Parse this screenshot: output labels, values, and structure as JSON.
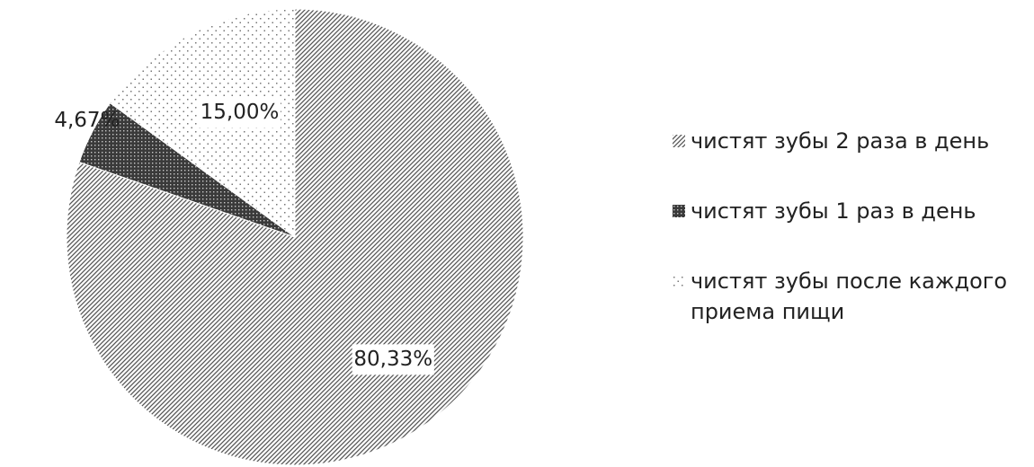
{
  "chart_data": {
    "type": "pie",
    "title": "",
    "legend_position": "right",
    "slices": [
      {
        "label": "чистят зубы 2 раза в день",
        "value": 80.33,
        "data_label": "80,33%",
        "pattern": "diagonal-lines"
      },
      {
        "label": "чистят зубы 1 раз в день",
        "value": 4.67,
        "data_label": "4,67%",
        "pattern": "dense-grid"
      },
      {
        "label": "чистят зубы после каждого приема пищи",
        "value": 15.0,
        "data_label": "15,00%",
        "pattern": "sparse-dots"
      }
    ]
  }
}
